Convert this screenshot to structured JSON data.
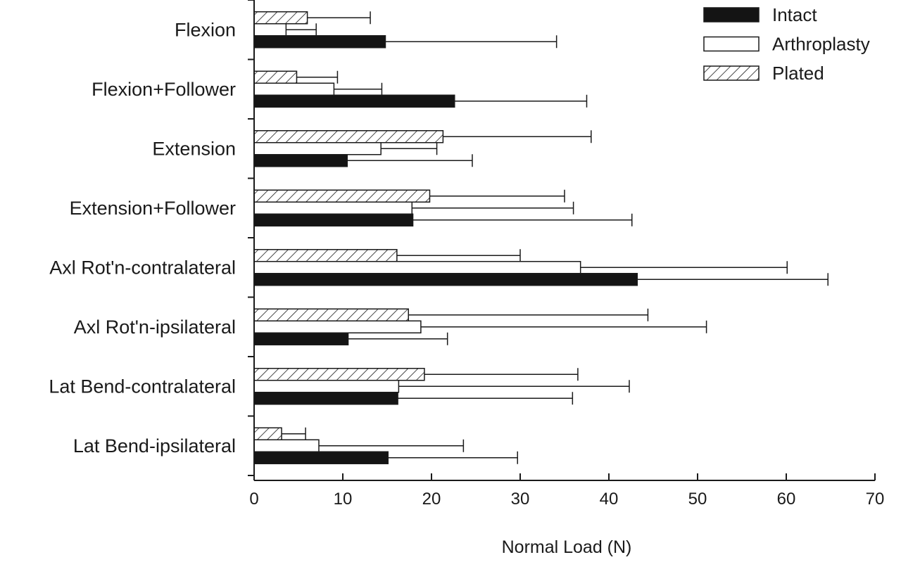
{
  "chart_data": {
    "type": "bar",
    "orientation": "horizontal",
    "title": "",
    "xlabel": "Normal Load (N)",
    "ylabel": "",
    "xlim": [
      0,
      70
    ],
    "xticks": [
      0,
      10,
      20,
      30,
      40,
      50,
      60,
      70
    ],
    "grid": false,
    "legend_position": "top-right",
    "categories": [
      "Flexion",
      "Flexion+Follower",
      "Extension",
      "Extension+Follower",
      "Axl Rot'n-contralateral",
      "Axl Rot'n-ipsilateral",
      "Lat Bend-contralateral",
      "Lat Bend-ipsilateral"
    ],
    "series": [
      {
        "name": "Intact",
        "fill": "solid",
        "color": "#141414",
        "values": [
          14.8,
          22.6,
          10.5,
          17.9,
          43.2,
          10.6,
          16.2,
          15.1
        ],
        "error": [
          19.3,
          14.9,
          14.1,
          24.7,
          21.5,
          11.2,
          19.7,
          14.6
        ]
      },
      {
        "name": "Arthroplasty",
        "fill": "open",
        "color": "#ffffff",
        "values": [
          3.6,
          9.0,
          14.3,
          17.8,
          36.8,
          18.8,
          16.3,
          7.3
        ],
        "error": [
          3.4,
          5.4,
          6.3,
          18.2,
          23.3,
          32.2,
          26.0,
          16.3
        ]
      },
      {
        "name": "Plated",
        "fill": "hatched",
        "color": "#ffffff",
        "values": [
          6.0,
          4.8,
          21.3,
          19.8,
          16.1,
          17.4,
          19.2,
          3.1
        ],
        "error": [
          7.1,
          4.6,
          16.7,
          15.2,
          13.9,
          27.0,
          17.3,
          2.7
        ]
      }
    ]
  }
}
